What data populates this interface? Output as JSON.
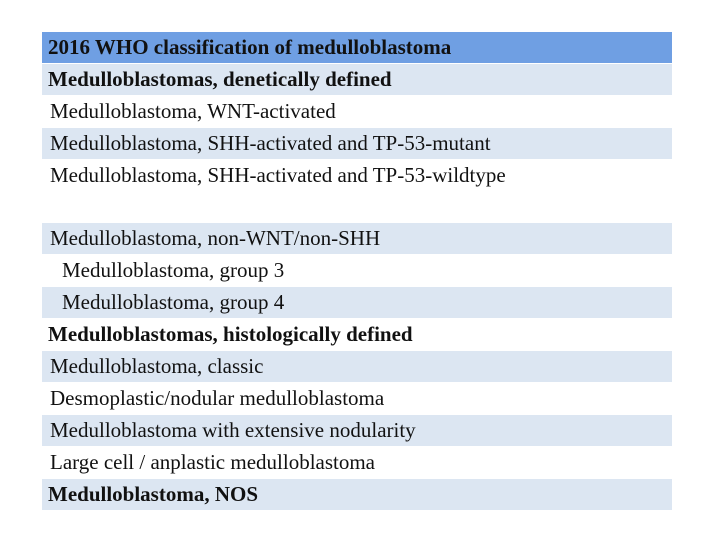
{
  "table": {
    "title": "2016 WHO classification of medulloblastoma",
    "rows": [
      "Medulloblastomas, denetically defined",
      "Medulloblastoma, WNT-activated",
      "Medulloblastoma, SHH-activated and TP-53-mutant",
      "Medulloblastoma, SHH-activated and TP-53-wildtype",
      "Medulloblastoma, non-WNT/non-SHH",
      "Medulloblastoma, group 3",
      "Medulloblastoma, group 4",
      "Medulloblastomas, histologically defined",
      "Medulloblastoma, classic",
      "Desmoplastic/nodular medulloblastoma",
      "Medulloblastoma with extensive nodularity",
      "Large cell / anplastic medulloblastoma",
      "Medulloblastoma, NOS"
    ]
  }
}
